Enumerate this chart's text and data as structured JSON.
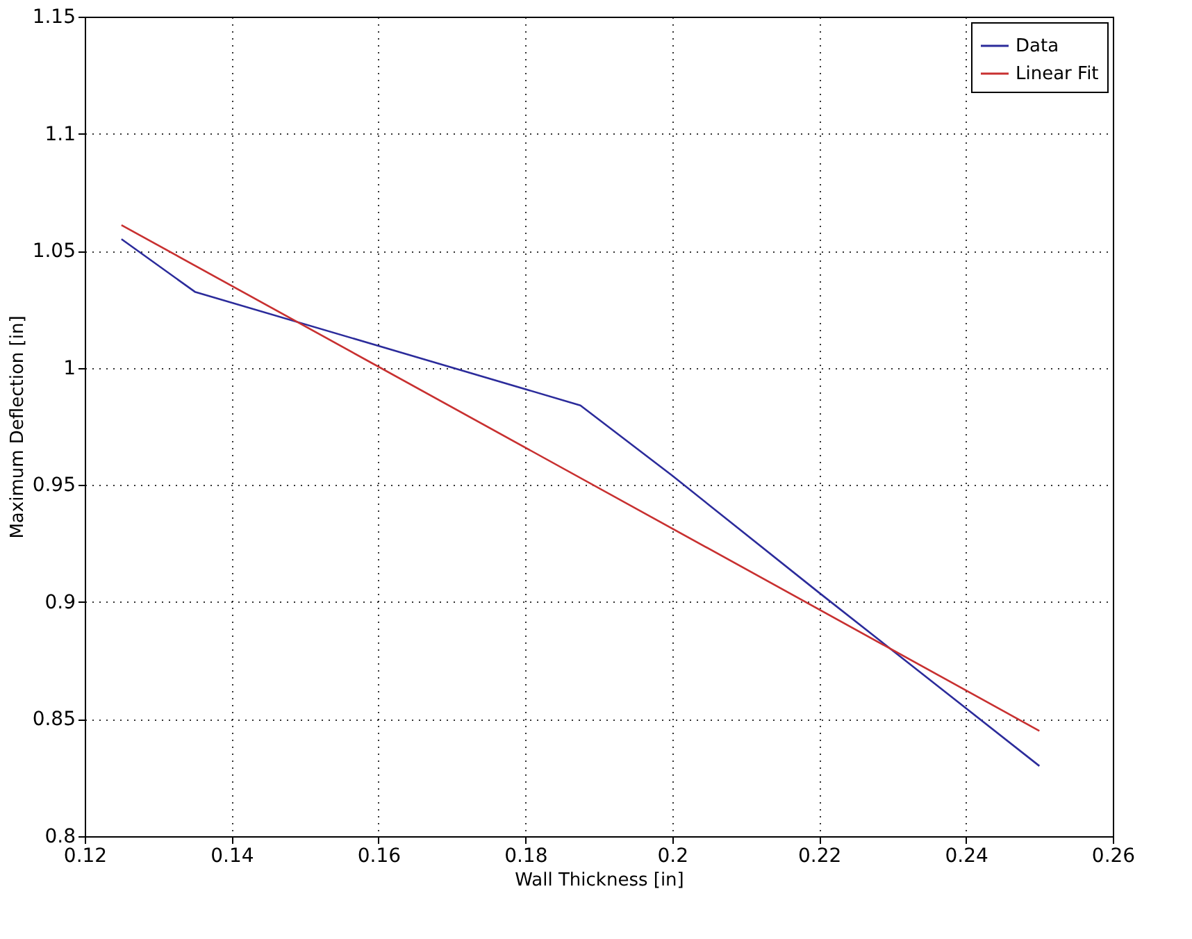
{
  "chart_data": {
    "type": "line",
    "xlabel": "Wall Thickness [in]",
    "ylabel": "Maximum Deflection [in]",
    "xlim": [
      0.12,
      0.26
    ],
    "xticks": [
      0.12,
      0.14,
      0.16,
      0.18,
      0.2,
      0.22,
      0.24,
      0.26
    ],
    "ylim": [
      0.8,
      1.15
    ],
    "yticks": [
      0.8,
      0.85,
      0.9,
      0.95,
      1,
      1.05,
      1.1,
      1.15
    ],
    "grid": true,
    "legend": "top right",
    "line_style": "solid",
    "marker": "none",
    "series": [
      {
        "name": "Data",
        "color": "#2b2b9b",
        "x": [
          0.125,
          0.135,
          0.1875,
          0.2,
          0.22,
          0.25
        ],
        "values": [
          1.055,
          1.0325,
          0.984,
          0.954,
          0.904,
          0.83
        ]
      },
      {
        "name": "Linear Fit",
        "color": "#c83030",
        "x": [
          0.125,
          0.25
        ],
        "values": [
          1.061,
          0.845
        ]
      }
    ]
  }
}
